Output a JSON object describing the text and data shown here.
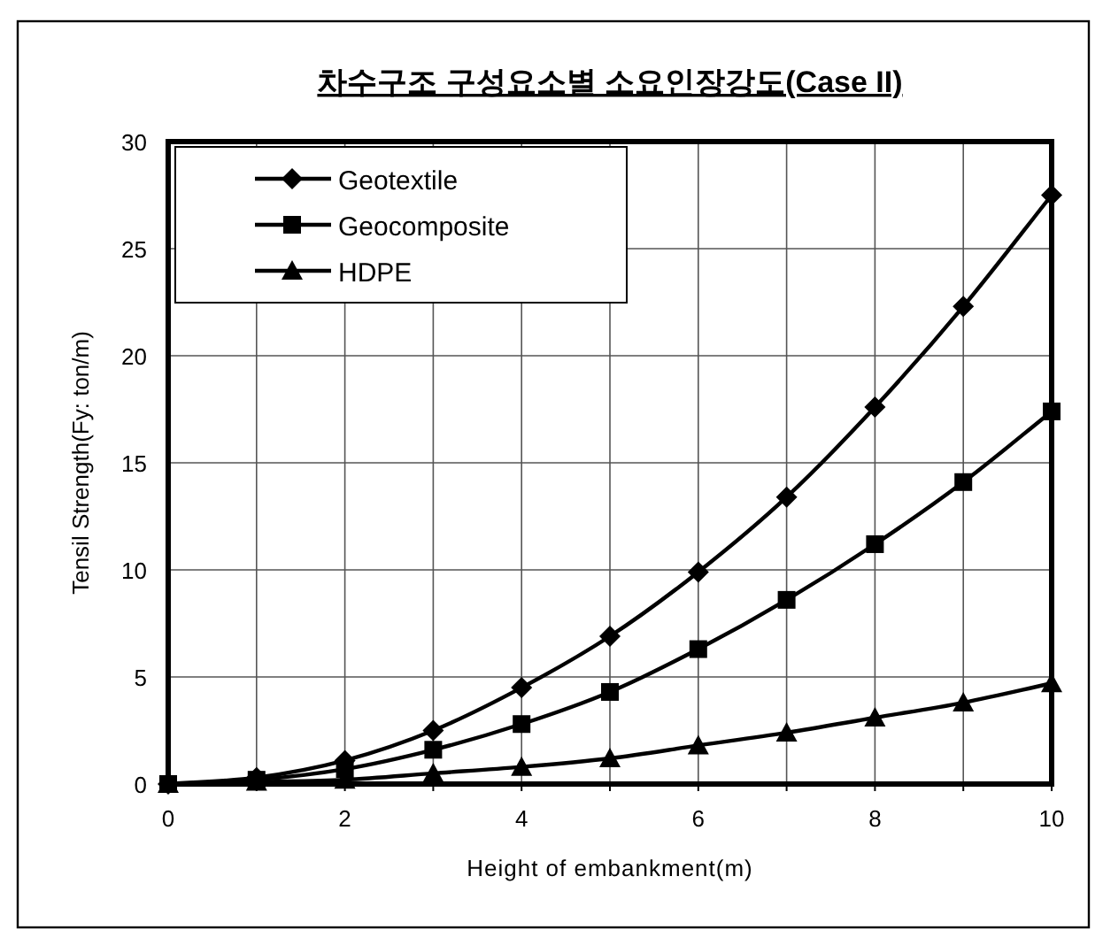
{
  "chart_data": {
    "type": "line",
    "title": "차수구조 구성요소별 소요인장강도(Case II)",
    "xlabel": "Height of embankment(m)",
    "ylabel": "Tensil Strength(Fy: ton/m)",
    "x": [
      0,
      1,
      2,
      3,
      4,
      5,
      6,
      7,
      8,
      9,
      10
    ],
    "series": [
      {
        "name": "Geotextile",
        "color": "#000000",
        "marker": "diamond",
        "values": [
          0,
          0.3,
          1.1,
          2.5,
          4.5,
          6.9,
          9.9,
          13.4,
          17.6,
          22.3,
          27.5
        ]
      },
      {
        "name": "Geocomposite",
        "color": "#000000",
        "marker": "square",
        "values": [
          0,
          0.2,
          0.7,
          1.6,
          2.8,
          4.3,
          6.3,
          8.6,
          11.2,
          14.1,
          17.4
        ]
      },
      {
        "name": "HDPE",
        "color": "#000000",
        "marker": "triangle",
        "values": [
          0,
          0.1,
          0.2,
          0.5,
          0.8,
          1.2,
          1.8,
          2.4,
          3.1,
          3.8,
          4.7
        ]
      }
    ],
    "xlim": [
      0,
      10
    ],
    "ylim": [
      0,
      30
    ],
    "xticks": [
      0,
      {
        "value": 1,
        "label": null
      },
      2,
      {
        "value": 3,
        "label": null
      },
      4,
      {
        "value": 5,
        "label": null
      },
      6,
      {
        "value": 7,
        "label": null
      },
      8,
      {
        "value": 9,
        "label": null
      },
      10
    ],
    "yticks": [
      0,
      5,
      10,
      15,
      20,
      25,
      30
    ],
    "grid": true,
    "legend": "top left",
    "line_style": "solid"
  }
}
